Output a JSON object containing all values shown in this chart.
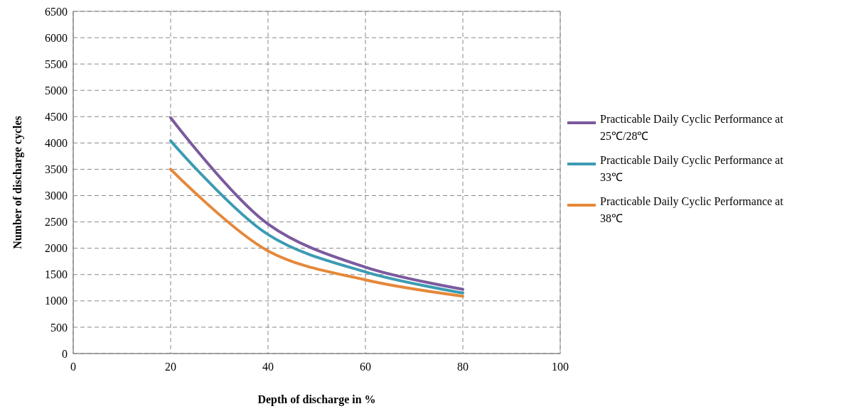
{
  "chart_data": {
    "type": "line",
    "xlabel": "Depth of discharge in %",
    "ylabel": "Number of discharge cycles",
    "x": [
      20,
      40,
      60,
      80
    ],
    "series": [
      {
        "name": "Practicable Daily Cyclic Performance at 25℃/28℃",
        "color": "#7b5a9e",
        "values": [
          4480,
          2460,
          1640,
          1220
        ]
      },
      {
        "name": "Practicable Daily Cyclic Performance at 33℃",
        "color": "#3b9bb3",
        "values": [
          4040,
          2260,
          1550,
          1150
        ]
      },
      {
        "name": "Practicable Daily Cyclic Performance at 38℃",
        "color": "#e5883a",
        "values": [
          3500,
          1950,
          1400,
          1090
        ]
      }
    ],
    "xlim": [
      0,
      100
    ],
    "xticks": [
      0,
      20,
      40,
      60,
      80,
      100
    ],
    "ylim": [
      0,
      6500
    ],
    "yticks": [
      0,
      500,
      1000,
      1500,
      2000,
      2500,
      3000,
      3500,
      4000,
      4500,
      5000,
      5500,
      6000,
      6500
    ],
    "grid": true,
    "legend": "right",
    "line_style": "solid",
    "marker": "none"
  }
}
